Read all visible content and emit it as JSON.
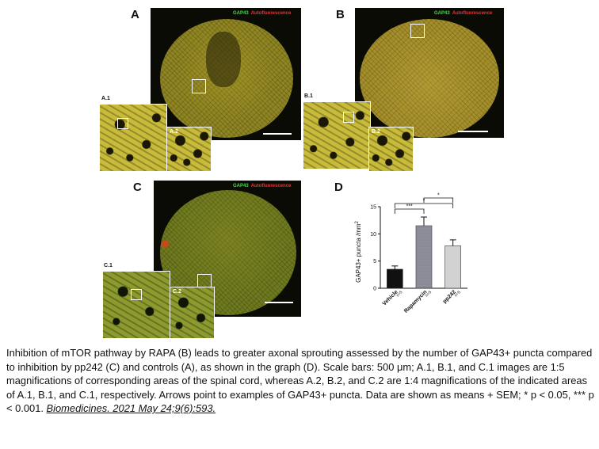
{
  "panels": {
    "a": {
      "letter": "A",
      "sub1": "A.1",
      "sub2": "A.2"
    },
    "b": {
      "letter": "B",
      "sub1": "B.1",
      "sub2": "B.2"
    },
    "c": {
      "letter": "C",
      "sub1": "C.1",
      "sub2": "C.2"
    },
    "d": {
      "letter": "D"
    }
  },
  "stain_legend": {
    "gap43": "GAP43",
    "autofluorescence": "Autofluorescence"
  },
  "colors": {
    "gap43": "#3ce03c",
    "autofluorescence": "#ff2a2a"
  },
  "chart_data": {
    "type": "bar",
    "categories": [
      "Vehicle",
      "Rapamycin",
      "pp242"
    ],
    "n_labels": [
      "n=5",
      "n=5",
      "n=5"
    ],
    "values": [
      3.5,
      11.5,
      7.8
    ],
    "errors": [
      0.6,
      1.6,
      1.1
    ],
    "ylabel": "GAP43+ puncta /mm",
    "ylabel_sup": "2",
    "ylim": [
      0,
      15
    ],
    "yticks": [
      "0",
      "5",
      "10",
      "15"
    ],
    "bar_colors": [
      "#111111",
      "#9a9aa6",
      "#d2d2d2"
    ],
    "significance": [
      {
        "label": "***",
        "pair": [
          "Vehicle",
          "Rapamycin"
        ]
      },
      {
        "label": "*",
        "pair": [
          "Vehicle",
          "pp242"
        ]
      },
      {
        "label": "*",
        "pair": [
          "Rapamycin",
          "pp242"
        ]
      }
    ]
  },
  "caption": {
    "text": "Inhibition of mTOR pathway by RAPA (B) leads to greater axonal sprouting assessed by the number of GAP43+ puncta compared to inhibition by pp242 (C) and controls (A), as shown in the graph (D). Scale bars: 500 μm; A.1, B.1, and C.1 images are 1:5 magnifications of corresponding areas of the spinal cord, whereas A.2, B.2, and C.2 are 1:4 magnifications of the indicated areas of A.1, B.1, and C.1, respectively. Arrows point to examples of GAP43+ puncta. Data are shown as means + SEM; * p < 0.05, *** p < 0.001.",
    "citation": "Biomedicines. 2021 May 24;9(6):593."
  }
}
